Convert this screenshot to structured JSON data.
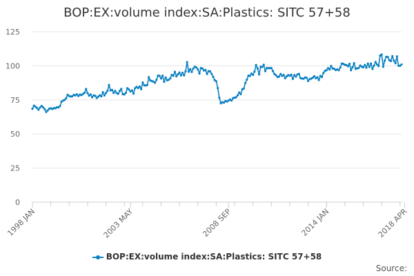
{
  "chart_data": {
    "type": "line",
    "title": "BOP:EX:volume index:SA:Plastics: SITC 57+58",
    "xlabel": "",
    "ylabel": "",
    "ylim": [
      0,
      125
    ],
    "yticks": [
      0,
      25,
      50,
      75,
      100,
      125
    ],
    "x_tick_labels": [
      "1998 JAN",
      "2003 MAY",
      "2008 SEP",
      "2014 JAN",
      "2018 APR"
    ],
    "x_tick_indices": [
      0,
      64,
      128,
      192,
      243
    ],
    "grid": true,
    "legend": "bottom-center",
    "series": [
      {
        "name": "BOP:EX:volume index:SA:Plastics: SITC 57+58",
        "color": "#0a80c0",
        "x_start": "1998 JAN",
        "x_end": "2018 APR",
        "frequency": "monthly",
        "values": [
          68.5,
          70.8,
          70.0,
          69.0,
          67.8,
          69.5,
          70.6,
          69.5,
          68.2,
          66.2,
          67.3,
          68.5,
          68.9,
          68.3,
          69.0,
          68.9,
          69.6,
          69.5,
          70.5,
          73.7,
          74.5,
          75.0,
          76.3,
          78.8,
          77.8,
          77.5,
          77.6,
          78.7,
          78.3,
          79.1,
          77.9,
          78.9,
          78.5,
          79.4,
          80.2,
          83.0,
          80.0,
          78.1,
          79.0,
          76.9,
          78.3,
          78.0,
          76.4,
          77.4,
          78.4,
          77.6,
          80.7,
          78.3,
          80.1,
          81.6,
          86.0,
          82.0,
          82.3,
          80.1,
          81.6,
          80.0,
          79.5,
          81.6,
          83.1,
          79.2,
          79.0,
          80.2,
          83.6,
          82.6,
          81.2,
          82.0,
          79.6,
          83.6,
          84.6,
          83.7,
          84.8,
          82.9,
          87.8,
          85.7,
          85.6,
          86.0,
          91.7,
          89.2,
          88.9,
          88.4,
          87.6,
          89.7,
          92.8,
          92.6,
          90.7,
          92.8,
          88.3,
          91.4,
          89.4,
          89.8,
          90.8,
          93.4,
          92.7,
          95.6,
          92.3,
          93.8,
          95.1,
          93.0,
          94.9,
          93.0,
          96.0,
          102.7,
          95.7,
          97.5,
          95.5,
          98.0,
          99.3,
          98.8,
          97.4,
          94.3,
          98.4,
          98.0,
          96.6,
          96.9,
          94.0,
          96.1,
          95.9,
          94.1,
          91.9,
          89.5,
          88.7,
          83.7,
          76.6,
          72.5,
          73.3,
          73.0,
          74.2,
          73.8,
          74.5,
          75.3,
          74.5,
          76.3,
          76.6,
          77.0,
          78.4,
          80.4,
          79.2,
          82.7,
          83.4,
          87.4,
          89.9,
          92.8,
          92.6,
          94.3,
          93.4,
          95.8,
          100.6,
          98.1,
          93.7,
          99.3,
          99.2,
          100.8,
          96.1,
          98.4,
          98.3,
          98.3,
          98.4,
          96.1,
          94.0,
          93.1,
          91.8,
          92.1,
          94.0,
          92.6,
          93.3,
          90.9,
          92.3,
          93.2,
          92.7,
          93.5,
          90.4,
          93.2,
          92.1,
          93.7,
          94.1,
          91.0,
          90.7,
          90.5,
          91.5,
          91.2,
          88.9,
          90.3,
          90.6,
          91.3,
          92.4,
          90.9,
          91.6,
          89.6,
          92.6,
          91.8,
          94.8,
          96.3,
          96.8,
          98.3,
          97.3,
          99.9,
          98.0,
          97.9,
          96.9,
          97.4,
          96.8,
          98.8,
          101.7,
          101.4,
          100.7,
          100.5,
          99.7,
          101.5,
          96.8,
          99.0,
          101.9,
          97.8,
          98.2,
          98.4,
          100.2,
          99.4,
          98.9,
          100.6,
          98.6,
          101.7,
          99.2,
          101.7,
          97.7,
          100.1,
          102.8,
          101.0,
          99.8,
          107.5,
          108.3,
          99.3,
          103.8,
          106.6,
          106.5,
          104.2,
          103.5,
          107.1,
          103.8,
          101.9,
          106.9,
          100.1,
          100.0,
          101.0
        ]
      }
    ]
  },
  "legend": {
    "label": "BOP:EX:volume index:SA:Plastics: SITC 57+58",
    "color": "#0a80c0"
  },
  "footer": {
    "source_label": "Source:"
  }
}
